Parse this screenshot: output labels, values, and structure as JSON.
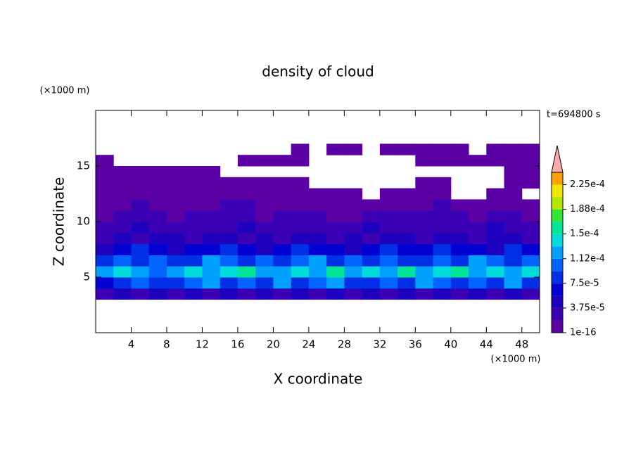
{
  "chart_data": {
    "type": "contour",
    "title": "density of cloud",
    "annotation": "t=694800 s",
    "x_label": "X coordinate",
    "y_label": "Z coordinate",
    "x_unit": "(×1000 m)",
    "y_unit": "(×1000 m)",
    "xlim": [
      0,
      50
    ],
    "ylim": [
      0,
      20
    ],
    "xticks": [
      4,
      8,
      12,
      16,
      20,
      24,
      28,
      32,
      36,
      40,
      44,
      48
    ],
    "yticks": [
      5,
      10,
      15
    ],
    "x": [
      1,
      3,
      5,
      7,
      9,
      11,
      13,
      15,
      17,
      19,
      21,
      23,
      25,
      27,
      29,
      31,
      33,
      35,
      37,
      39,
      41,
      43,
      45,
      47,
      49
    ],
    "z": [
      0.5,
      1.5,
      2.5,
      3.5,
      4.5,
      5.5,
      6.5,
      7.5,
      8.5,
      9.5,
      10.5,
      11.5,
      12.5,
      13.5,
      14.5,
      15.5,
      16.5,
      17.5,
      18.5,
      19.5
    ],
    "values": [
      [
        null,
        null,
        null,
        null,
        null,
        null,
        null,
        null,
        null,
        null,
        null,
        null,
        null,
        null,
        null,
        null,
        null,
        null,
        null,
        null,
        null,
        null,
        null,
        null,
        null
      ],
      [
        null,
        null,
        null,
        null,
        null,
        null,
        null,
        null,
        null,
        null,
        null,
        null,
        null,
        null,
        null,
        null,
        null,
        null,
        null,
        null,
        null,
        null,
        null,
        null,
        null
      ],
      [
        null,
        null,
        null,
        null,
        null,
        null,
        null,
        null,
        null,
        null,
        null,
        null,
        null,
        null,
        null,
        null,
        null,
        null,
        null,
        null,
        null,
        null,
        null,
        null,
        null
      ],
      [
        2.5e-05,
        4.5e-05,
        2.5e-05,
        4.5e-05,
        2.5e-05,
        4.5e-05,
        2.5e-05,
        4.5e-05,
        2.5e-05,
        4.5e-05,
        2.5e-05,
        4.5e-05,
        2.5e-05,
        4.5e-05,
        2.5e-05,
        4.5e-05,
        2.5e-05,
        4.5e-05,
        2.5e-05,
        4.5e-05,
        2.5e-05,
        4.5e-05,
        2.5e-05,
        4.5e-05,
        2.5e-05
      ],
      [
        6e-05,
        8e-05,
        0.0001,
        8e-05,
        8e-05,
        0.0001,
        0.00012,
        8e-05,
        0.0001,
        8e-05,
        0.00012,
        8e-05,
        0.0001,
        0.00012,
        8e-05,
        8e-05,
        0.0001,
        8e-05,
        0.00012,
        0.0001,
        8e-05,
        0.0001,
        8e-05,
        0.00012,
        8e-05
      ],
      [
        0.00012,
        0.000135,
        0.00012,
        0.0001,
        0.00012,
        0.000135,
        0.00012,
        0.000135,
        0.00016,
        0.00012,
        0.00012,
        0.000135,
        0.00012,
        0.00016,
        0.00012,
        0.000135,
        0.00012,
        0.00016,
        0.00012,
        0.000135,
        0.00016,
        0.00012,
        0.000135,
        0.00012,
        0.000135
      ],
      [
        8e-05,
        0.0001,
        8e-05,
        0.0001,
        8e-05,
        8e-05,
        0.00012,
        0.0001,
        8e-05,
        0.0001,
        8e-05,
        0.0001,
        0.00012,
        8e-05,
        0.0001,
        8e-05,
        0.0001,
        8e-05,
        8e-05,
        0.0001,
        8e-05,
        0.00012,
        0.0001,
        8e-05,
        0.0001
      ],
      [
        4.5e-05,
        6e-05,
        8e-05,
        6e-05,
        4.5e-05,
        6e-05,
        6e-05,
        8e-05,
        6e-05,
        4.5e-05,
        6e-05,
        8e-05,
        6e-05,
        6e-05,
        4.5e-05,
        6e-05,
        8e-05,
        6e-05,
        6e-05,
        8e-05,
        6e-05,
        6e-05,
        4.5e-05,
        8e-05,
        6e-05
      ],
      [
        2.5e-05,
        4.5e-05,
        2.5e-05,
        4.5e-05,
        4.5e-05,
        2.5e-05,
        4.5e-05,
        4.5e-05,
        2.5e-05,
        4.5e-05,
        2.5e-05,
        4.5e-05,
        4.5e-05,
        2.5e-05,
        4.5e-05,
        2.5e-05,
        4.5e-05,
        4.5e-05,
        2.5e-05,
        4.5e-05,
        4.5e-05,
        2.5e-05,
        4.5e-05,
        4.5e-05,
        2.5e-05
      ],
      [
        2.5e-05,
        2.5e-05,
        4.5e-05,
        2.5e-05,
        2.5e-05,
        2.5e-05,
        2.5e-05,
        2.5e-05,
        4.5e-05,
        2.5e-05,
        2.5e-05,
        2.5e-05,
        2.5e-05,
        2.5e-05,
        2.5e-05,
        4.5e-05,
        2.5e-05,
        2.5e-05,
        2.5e-05,
        2.5e-05,
        2.5e-05,
        2.5e-05,
        4.5e-05,
        2.5e-05,
        2.5e-05
      ],
      [
        1e-05,
        2.5e-05,
        2.5e-05,
        2.5e-05,
        1e-05,
        2.5e-05,
        2.5e-05,
        2.5e-05,
        2.5e-05,
        1e-05,
        2.5e-05,
        2.5e-05,
        2.5e-05,
        1e-05,
        1e-05,
        2.5e-05,
        2.5e-05,
        2.5e-05,
        2.5e-05,
        2.5e-05,
        2.5e-05,
        1e-05,
        2.5e-05,
        2.5e-05,
        1e-05
      ],
      [
        1e-05,
        1e-05,
        2.5e-05,
        1e-05,
        1e-05,
        1e-05,
        1e-05,
        2.5e-05,
        2.5e-05,
        1e-05,
        1e-05,
        1e-05,
        1e-05,
        1e-05,
        1e-05,
        1e-05,
        1e-05,
        1e-05,
        1e-05,
        2.5e-05,
        1e-05,
        1e-05,
        1e-05,
        1e-05,
        1e-05
      ],
      [
        1e-05,
        1e-05,
        1e-05,
        1e-05,
        1e-05,
        1e-05,
        1e-05,
        1e-05,
        1e-05,
        1e-05,
        1e-05,
        1e-05,
        1e-05,
        1e-05,
        1e-05,
        null,
        1e-05,
        1e-05,
        1e-05,
        1e-05,
        null,
        null,
        1e-05,
        1e-05,
        null
      ],
      [
        1e-05,
        1e-05,
        1e-05,
        1e-05,
        1e-05,
        1e-05,
        1e-05,
        1e-05,
        1e-05,
        1e-05,
        1e-05,
        1e-05,
        null,
        null,
        null,
        null,
        null,
        null,
        1e-05,
        1e-05,
        null,
        null,
        null,
        1e-05,
        1e-05
      ],
      [
        1e-05,
        1e-05,
        1e-05,
        1e-05,
        1e-05,
        1e-05,
        1e-05,
        null,
        null,
        null,
        null,
        null,
        null,
        null,
        null,
        null,
        null,
        null,
        null,
        null,
        null,
        null,
        null,
        1e-05,
        1e-05
      ],
      [
        1e-05,
        null,
        null,
        null,
        null,
        null,
        null,
        null,
        1e-05,
        1e-05,
        1e-05,
        1e-05,
        null,
        null,
        null,
        null,
        null,
        null,
        1e-05,
        1e-05,
        1e-05,
        1e-05,
        1e-05,
        1e-05,
        1e-05
      ],
      [
        null,
        null,
        null,
        null,
        null,
        null,
        null,
        null,
        null,
        null,
        null,
        1e-05,
        null,
        1e-05,
        1e-05,
        null,
        1e-05,
        1e-05,
        1e-05,
        1e-05,
        1e-05,
        null,
        1e-05,
        1e-05,
        1e-05
      ],
      [
        null,
        null,
        null,
        null,
        null,
        null,
        null,
        null,
        null,
        null,
        null,
        null,
        null,
        null,
        null,
        null,
        null,
        null,
        null,
        null,
        null,
        null,
        null,
        null,
        null
      ],
      [
        null,
        null,
        null,
        null,
        null,
        null,
        null,
        null,
        null,
        null,
        null,
        null,
        null,
        null,
        null,
        null,
        null,
        null,
        null,
        null,
        null,
        null,
        null,
        null,
        null
      ],
      [
        null,
        null,
        null,
        null,
        null,
        null,
        null,
        null,
        null,
        null,
        null,
        null,
        null,
        null,
        null,
        null,
        null,
        null,
        null,
        null,
        null,
        null,
        null,
        null,
        null
      ]
    ],
    "levels": [
      1e-16,
      1.875e-05,
      3.75e-05,
      5.625e-05,
      7.5e-05,
      9.375e-05,
      0.0001125,
      0.00013125,
      0.00015,
      0.00016875,
      0.0001875,
      0.00020625,
      0.000225,
      0.00024375
    ],
    "colors": [
      "#5a00a5",
      "#3c00b4",
      "#1e00be",
      "#0000d2",
      "#0030e6",
      "#0064ff",
      "#00a0ff",
      "#00dcdc",
      "#00e696",
      "#32e632",
      "#b4e600",
      "#f0e600",
      "#ffa000"
    ],
    "extend_color": "#ffaaaa",
    "colorbar_ticks": [
      1e-16,
      {
        "value": 3.75e-05,
        "label": "3.75e-5"
      },
      {
        "value": 7.5e-05,
        "label": "7.5e-5"
      },
      {
        "value": 0.0001125,
        "label": "1.12e-4"
      },
      {
        "value": 0.00015,
        "label": "1.5e-4"
      },
      {
        "value": 0.0001875,
        "label": "1.88e-4"
      },
      {
        "value": 0.000225,
        "label": "2.25e-4"
      }
    ]
  }
}
